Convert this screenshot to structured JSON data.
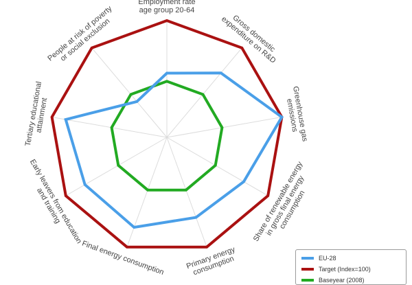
{
  "chart_data": {
    "type": "radar",
    "axes": [
      "Employment rate age group 20-64",
      "Gross domestic expenditure on R&D",
      "Greenhouse gas emissions",
      "Share of renewable energy in gross final energy consumption",
      "Primary energy consumption",
      "Final energy consumption",
      "Early leavers from education and training",
      "Tertiary educational attainment",
      "People at risk of poverty or social exclusion"
    ],
    "axis_label_lines": [
      [
        "Employment rate",
        "age group 20-64"
      ],
      [
        "Gross domestic",
        "expenditure on R&D"
      ],
      [
        "Greenhouse gas",
        "emissions"
      ],
      [
        "Share of renewable energy",
        "in gross final energy",
        "consumption"
      ],
      [
        "Primary energy",
        "consumption"
      ],
      [
        "Final energy consumption"
      ],
      [
        "Early leavers from education",
        "and training"
      ],
      [
        "Tertiary educational",
        "attainment"
      ],
      [
        "People at risk of poverty",
        "or social exclusion"
      ]
    ],
    "range": [
      0,
      100
    ],
    "series": [
      {
        "name": "EU-28",
        "color": "#4a9fe8",
        "values": [
          55,
          72,
          100,
          76,
          73,
          82,
          81,
          88,
          40
        ]
      },
      {
        "name": "Target (Index=100)",
        "color": "#aa1111",
        "values": [
          100,
          100,
          100,
          100,
          100,
          100,
          100,
          100,
          100
        ]
      },
      {
        "name": "Baseyear (2008)",
        "color": "#22aa22",
        "values": [
          48,
          48,
          48,
          48,
          48,
          48,
          48,
          48,
          48
        ]
      }
    ]
  }
}
